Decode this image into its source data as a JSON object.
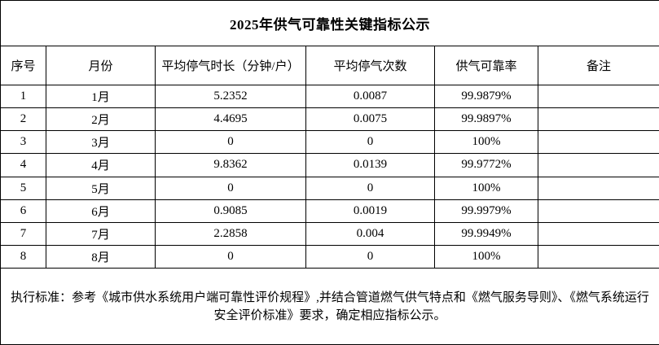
{
  "title": "2025年供气可靠性关键指标公示",
  "table": {
    "headers": [
      "序号",
      "月份",
      "平均停气时长（分钟/户）",
      "平均停气次数",
      "供气可靠率",
      "备注"
    ],
    "rows": [
      [
        "1",
        "1月",
        "5.2352",
        "0.0087",
        "99.9879%",
        ""
      ],
      [
        "2",
        "2月",
        "4.4695",
        "0.0075",
        "99.9897%",
        ""
      ],
      [
        "3",
        "3月",
        "0",
        "0",
        "100%",
        ""
      ],
      [
        "4",
        "4月",
        "9.8362",
        "0.0139",
        "99.9772%",
        ""
      ],
      [
        "5",
        "5月",
        "0",
        "0",
        "100%",
        ""
      ],
      [
        "6",
        "6月",
        "0.9085",
        "0.0019",
        "99.9979%",
        ""
      ],
      [
        "7",
        "7月",
        "2.2858",
        "0.004",
        "99.9949%",
        ""
      ],
      [
        "8",
        "8月",
        "0",
        "0",
        "100%",
        ""
      ]
    ]
  },
  "footer_note": "执行标准：参考《城市供水系统用户端可靠性评价规程》,并结合管道燃气供气特点和《燃气服务导则》、《燃气系统运行安全评价标准》要求，确定相应指标公示。",
  "colors": {
    "border": "#000000",
    "background": "#ffffff",
    "text": "#000000"
  }
}
